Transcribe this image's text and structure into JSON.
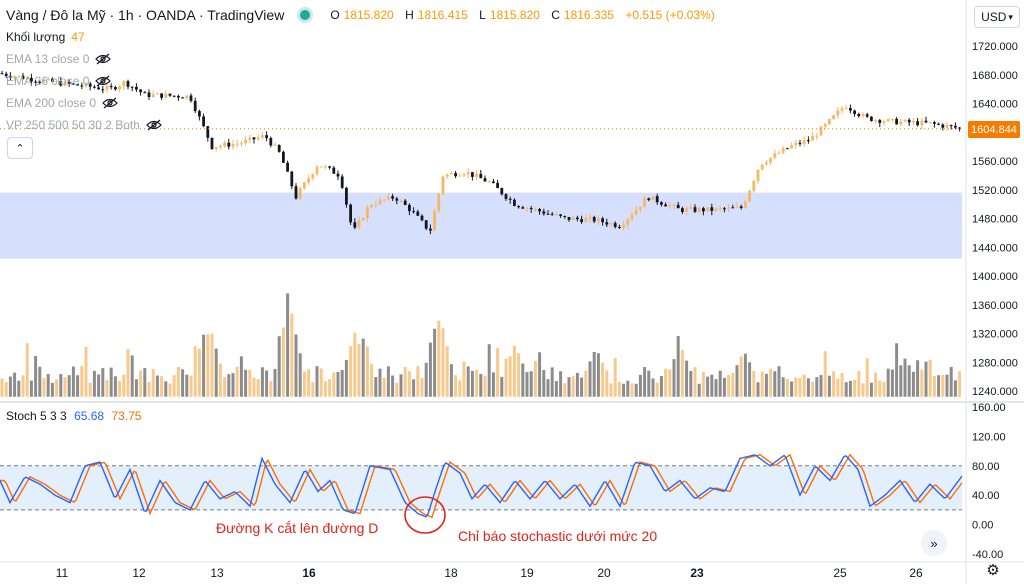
{
  "header": {
    "symbol_title": "Vàng / Đô la Mỹ · 1h · OANDA · TradingView",
    "ohlc": {
      "o_label": "O",
      "o": "1815.820",
      "h_label": "H",
      "h": "1816.415",
      "l_label": "L",
      "l": "1815.820",
      "c_label": "C",
      "c": "1816.335",
      "change": "+0.515 (+0.03%)"
    },
    "currency": "USD"
  },
  "indicators": {
    "volume": {
      "label": "Khối lượng",
      "value": "47"
    },
    "ema13": "EMA 13 close 0",
    "ema26": "EMA 26 close 0",
    "ema200": "EMA 200 close 0",
    "vp": "VP 250 500 50 30 2 Both"
  },
  "stoch": {
    "label": "Stoch 5 3 3",
    "k": "65.68",
    "d": "73.75"
  },
  "current_price": "1604.844",
  "annotations": {
    "k_cross": "Đường K cắt lên đường D",
    "below_20": "Chỉ báo stochastic dưới mức 20"
  },
  "colors": {
    "up": "#f7b861",
    "down": "#131722",
    "vol_up": "#f9c98b",
    "vol_down": "#8c8c8c",
    "zone": "#d6e0fd",
    "stoch_k": "#2962ff",
    "stoch_d": "#ff6d00",
    "annot": "#e0241b",
    "price_tag": "#f57c00"
  },
  "chart_data": [
    {
      "type": "candlestick",
      "title": "Vàng / Đô la Mỹ · 1h · OANDA",
      "x_ticks": [
        "11",
        "12",
        "13",
        "16",
        "18",
        "19",
        "20",
        "23",
        "25",
        "26"
      ],
      "bold_ticks": [
        "16",
        "23"
      ],
      "y_ticks": [
        1440,
        1480,
        1520,
        1560,
        1600,
        1640,
        1680,
        1720,
        1240,
        1280,
        1320,
        1360,
        1400
      ],
      "ylim": [
        1232,
        1752
      ],
      "last_price": 1604.844,
      "highlight_zone": [
        1424,
        1516
      ],
      "anchors": [
        {
          "x": 0,
          "price": 1682
        },
        {
          "x": 40,
          "price": 1672
        },
        {
          "x": 80,
          "price": 1665
        },
        {
          "x": 110,
          "price": 1660
        },
        {
          "x": 125,
          "price": 1670
        },
        {
          "x": 145,
          "price": 1652
        },
        {
          "x": 190,
          "price": 1650
        },
        {
          "x": 212,
          "price": 1580
        },
        {
          "x": 240,
          "price": 1585
        },
        {
          "x": 265,
          "price": 1595
        },
        {
          "x": 280,
          "price": 1570
        },
        {
          "x": 296,
          "price": 1510
        },
        {
          "x": 318,
          "price": 1556
        },
        {
          "x": 340,
          "price": 1540
        },
        {
          "x": 353,
          "price": 1460
        },
        {
          "x": 370,
          "price": 1500
        },
        {
          "x": 395,
          "price": 1510
        },
        {
          "x": 412,
          "price": 1490
        },
        {
          "x": 430,
          "price": 1462
        },
        {
          "x": 443,
          "price": 1540
        },
        {
          "x": 465,
          "price": 1545
        },
        {
          "x": 490,
          "price": 1530
        },
        {
          "x": 515,
          "price": 1500
        },
        {
          "x": 540,
          "price": 1490
        },
        {
          "x": 565,
          "price": 1480
        },
        {
          "x": 595,
          "price": 1478
        },
        {
          "x": 620,
          "price": 1470
        },
        {
          "x": 648,
          "price": 1510
        },
        {
          "x": 680,
          "price": 1492
        },
        {
          "x": 715,
          "price": 1492
        },
        {
          "x": 742,
          "price": 1495
        },
        {
          "x": 760,
          "price": 1556
        },
        {
          "x": 790,
          "price": 1580
        },
        {
          "x": 810,
          "price": 1590
        },
        {
          "x": 826,
          "price": 1610
        },
        {
          "x": 845,
          "price": 1638
        },
        {
          "x": 865,
          "price": 1620
        },
        {
          "x": 890,
          "price": 1615
        },
        {
          "x": 930,
          "price": 1612
        },
        {
          "x": 962,
          "price": 1605
        }
      ]
    },
    {
      "type": "bar",
      "title": "Khối lượng",
      "value": 47,
      "series_note": "volume bars, up/down colored",
      "spikes": [
        {
          "x": 205,
          "value": 1325
        },
        {
          "x": 210,
          "value": 1330
        },
        {
          "x": 288,
          "value": 1360
        },
        {
          "x": 291,
          "value": 1350
        },
        {
          "x": 355,
          "value": 1322
        },
        {
          "x": 362,
          "value": 1318
        },
        {
          "x": 437,
          "value": 1340
        },
        {
          "x": 440,
          "value": 1345
        },
        {
          "x": 515,
          "value": 1305
        },
        {
          "x": 596,
          "value": 1300
        },
        {
          "x": 680,
          "value": 1305
        },
        {
          "x": 744,
          "value": 1296
        },
        {
          "x": 905,
          "value": 1285
        }
      ],
      "base_value": 1250
    },
    {
      "type": "line",
      "title": "Stoch 5 3 3",
      "series": [
        {
          "name": "%K",
          "last": 65.68
        },
        {
          "name": "%D",
          "last": 73.75
        }
      ],
      "y_ticks": [
        -40,
        0,
        40,
        80,
        120,
        160
      ],
      "ylim": [
        -45,
        165
      ],
      "bands": [
        20,
        80
      ],
      "k_anchors": [
        {
          "x": 0,
          "v": 60
        },
        {
          "x": 10,
          "v": 30
        },
        {
          "x": 25,
          "v": 65
        },
        {
          "x": 40,
          "v": 55
        },
        {
          "x": 55,
          "v": 40
        },
        {
          "x": 70,
          "v": 30
        },
        {
          "x": 85,
          "v": 80
        },
        {
          "x": 100,
          "v": 85
        },
        {
          "x": 115,
          "v": 35
        },
        {
          "x": 130,
          "v": 75
        },
        {
          "x": 145,
          "v": 15
        },
        {
          "x": 160,
          "v": 60
        },
        {
          "x": 175,
          "v": 30
        },
        {
          "x": 190,
          "v": 20
        },
        {
          "x": 205,
          "v": 60
        },
        {
          "x": 220,
          "v": 35
        },
        {
          "x": 235,
          "v": 45
        },
        {
          "x": 250,
          "v": 25
        },
        {
          "x": 262,
          "v": 90
        },
        {
          "x": 275,
          "v": 55
        },
        {
          "x": 290,
          "v": 30
        },
        {
          "x": 305,
          "v": 75
        },
        {
          "x": 318,
          "v": 45
        },
        {
          "x": 330,
          "v": 60
        },
        {
          "x": 343,
          "v": 20
        },
        {
          "x": 355,
          "v": 15
        },
        {
          "x": 370,
          "v": 80
        },
        {
          "x": 390,
          "v": 75
        },
        {
          "x": 405,
          "v": 30
        },
        {
          "x": 418,
          "v": 15
        },
        {
          "x": 427,
          "v": 10
        },
        {
          "x": 435,
          "v": 45
        },
        {
          "x": 445,
          "v": 85
        },
        {
          "x": 460,
          "v": 70
        },
        {
          "x": 472,
          "v": 35
        },
        {
          "x": 485,
          "v": 55
        },
        {
          "x": 500,
          "v": 30
        },
        {
          "x": 515,
          "v": 60
        },
        {
          "x": 530,
          "v": 35
        },
        {
          "x": 545,
          "v": 60
        },
        {
          "x": 560,
          "v": 35
        },
        {
          "x": 575,
          "v": 55
        },
        {
          "x": 590,
          "v": 25
        },
        {
          "x": 605,
          "v": 60
        },
        {
          "x": 620,
          "v": 25
        },
        {
          "x": 635,
          "v": 85
        },
        {
          "x": 650,
          "v": 80
        },
        {
          "x": 665,
          "v": 45
        },
        {
          "x": 680,
          "v": 60
        },
        {
          "x": 695,
          "v": 35
        },
        {
          "x": 710,
          "v": 50
        },
        {
          "x": 725,
          "v": 45
        },
        {
          "x": 740,
          "v": 90
        },
        {
          "x": 755,
          "v": 95
        },
        {
          "x": 770,
          "v": 80
        },
        {
          "x": 785,
          "v": 95
        },
        {
          "x": 800,
          "v": 40
        },
        {
          "x": 815,
          "v": 80
        },
        {
          "x": 830,
          "v": 60
        },
        {
          "x": 845,
          "v": 95
        },
        {
          "x": 858,
          "v": 75
        },
        {
          "x": 870,
          "v": 25
        },
        {
          "x": 885,
          "v": 40
        },
        {
          "x": 900,
          "v": 60
        },
        {
          "x": 915,
          "v": 30
        },
        {
          "x": 930,
          "v": 55
        },
        {
          "x": 945,
          "v": 35
        },
        {
          "x": 962,
          "v": 66
        }
      ],
      "d_lag": 5
    }
  ],
  "y_axis_price": [
    "1720.000",
    "1680.000",
    "1640.000",
    "1600.000",
    "1560.000",
    "1520.000",
    "1480.000",
    "1440.000",
    "1400.000",
    "1360.000",
    "1320.000",
    "1280.000",
    "1240.000"
  ],
  "y_axis_stoch": [
    "160.00",
    "120.00",
    "80.00",
    "40.00",
    "0.00",
    "-40.00"
  ]
}
